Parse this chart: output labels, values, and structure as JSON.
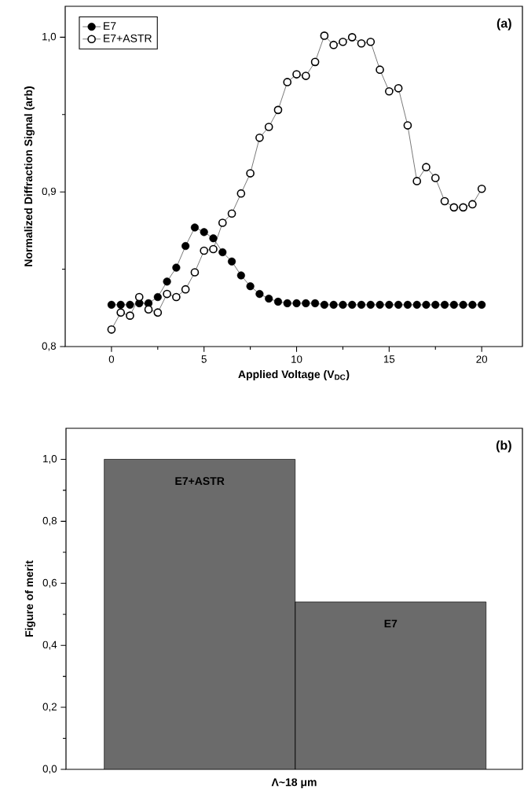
{
  "chart_data": [
    {
      "type": "line",
      "xlabel": "Applied Voltage (V$_{DC}$)",
      "ylabel": "Normalized Diffraction Signal (arb)",
      "annotations": [
        "(a)"
      ],
      "x": [
        0,
        0.5,
        1,
        1.5,
        2,
        2.5,
        3,
        3.5,
        4,
        4.5,
        5,
        5.5,
        6,
        6.5,
        7,
        7.5,
        8,
        8.5,
        9,
        9.5,
        10,
        10.5,
        11,
        11.5,
        12,
        12.5,
        13,
        13.5,
        14,
        14.5,
        15,
        15.5,
        16,
        16.5,
        17,
        17.5,
        18,
        18.5,
        19,
        19.5,
        20
      ],
      "series": [
        {
          "name": "E7",
          "color": "#000000",
          "values": [
            0.827,
            0.827,
            0.827,
            0.828,
            0.828,
            0.832,
            0.842,
            0.851,
            0.865,
            0.877,
            0.874,
            0.87,
            0.861,
            0.855,
            0.846,
            0.839,
            0.834,
            0.831,
            0.829,
            0.828,
            0.828,
            0.828,
            0.828,
            0.827,
            0.827,
            0.827,
            0.827,
            0.827,
            0.827,
            0.827,
            0.827,
            0.827,
            0.827,
            0.827,
            0.827,
            0.827,
            0.827,
            0.827,
            0.827,
            0.827,
            0.827
          ]
        },
        {
          "name": "E7+ASTR",
          "color": "#000000",
          "values": [
            0.811,
            0.822,
            0.82,
            0.832,
            0.824,
            0.822,
            0.834,
            0.832,
            0.837,
            0.848,
            0.862,
            0.863,
            0.88,
            0.886,
            0.899,
            0.912,
            0.935,
            0.942,
            0.953,
            0.971,
            0.976,
            0.975,
            0.984,
            1.001,
            0.995,
            0.997,
            1.0,
            0.996,
            0.997,
            0.979,
            0.965,
            0.967,
            0.943,
            0.907,
            0.916,
            0.909,
            0.894,
            0.89,
            0.89,
            0.892,
            0.902
          ]
        }
      ],
      "xlim": [
        -2.5,
        22.2
      ],
      "ylim": [
        0.8,
        1.02
      ],
      "xticks": [
        0,
        5,
        10,
        15,
        20
      ],
      "yticks": [
        {
          "value": 0.8,
          "label": "0,8"
        },
        {
          "value": 0.9,
          "label": "0,9"
        },
        {
          "value": 1.0,
          "label": "1,0"
        }
      ],
      "marker": "circle",
      "line_style": "solid",
      "legend": "top left"
    },
    {
      "type": "bar",
      "xlabel": "Λ~18 μm",
      "ylabel": "Figure of merit",
      "annotations": [
        "(b)"
      ],
      "categories": [
        "E7+ASTR",
        "E7"
      ],
      "values": [
        1.0,
        0.54
      ],
      "color": "#6b6b6b",
      "ylim": [
        0,
        1.1
      ],
      "yticks": [
        {
          "value": 0,
          "label": "0,0"
        },
        {
          "value": 0.2,
          "label": "0,2"
        },
        {
          "value": 0.4,
          "label": "0,4"
        },
        {
          "value": 0.6,
          "label": "0,6"
        },
        {
          "value": 0.8,
          "label": "0,8"
        },
        {
          "value": 1.0,
          "label": "1,0"
        }
      ]
    }
  ]
}
